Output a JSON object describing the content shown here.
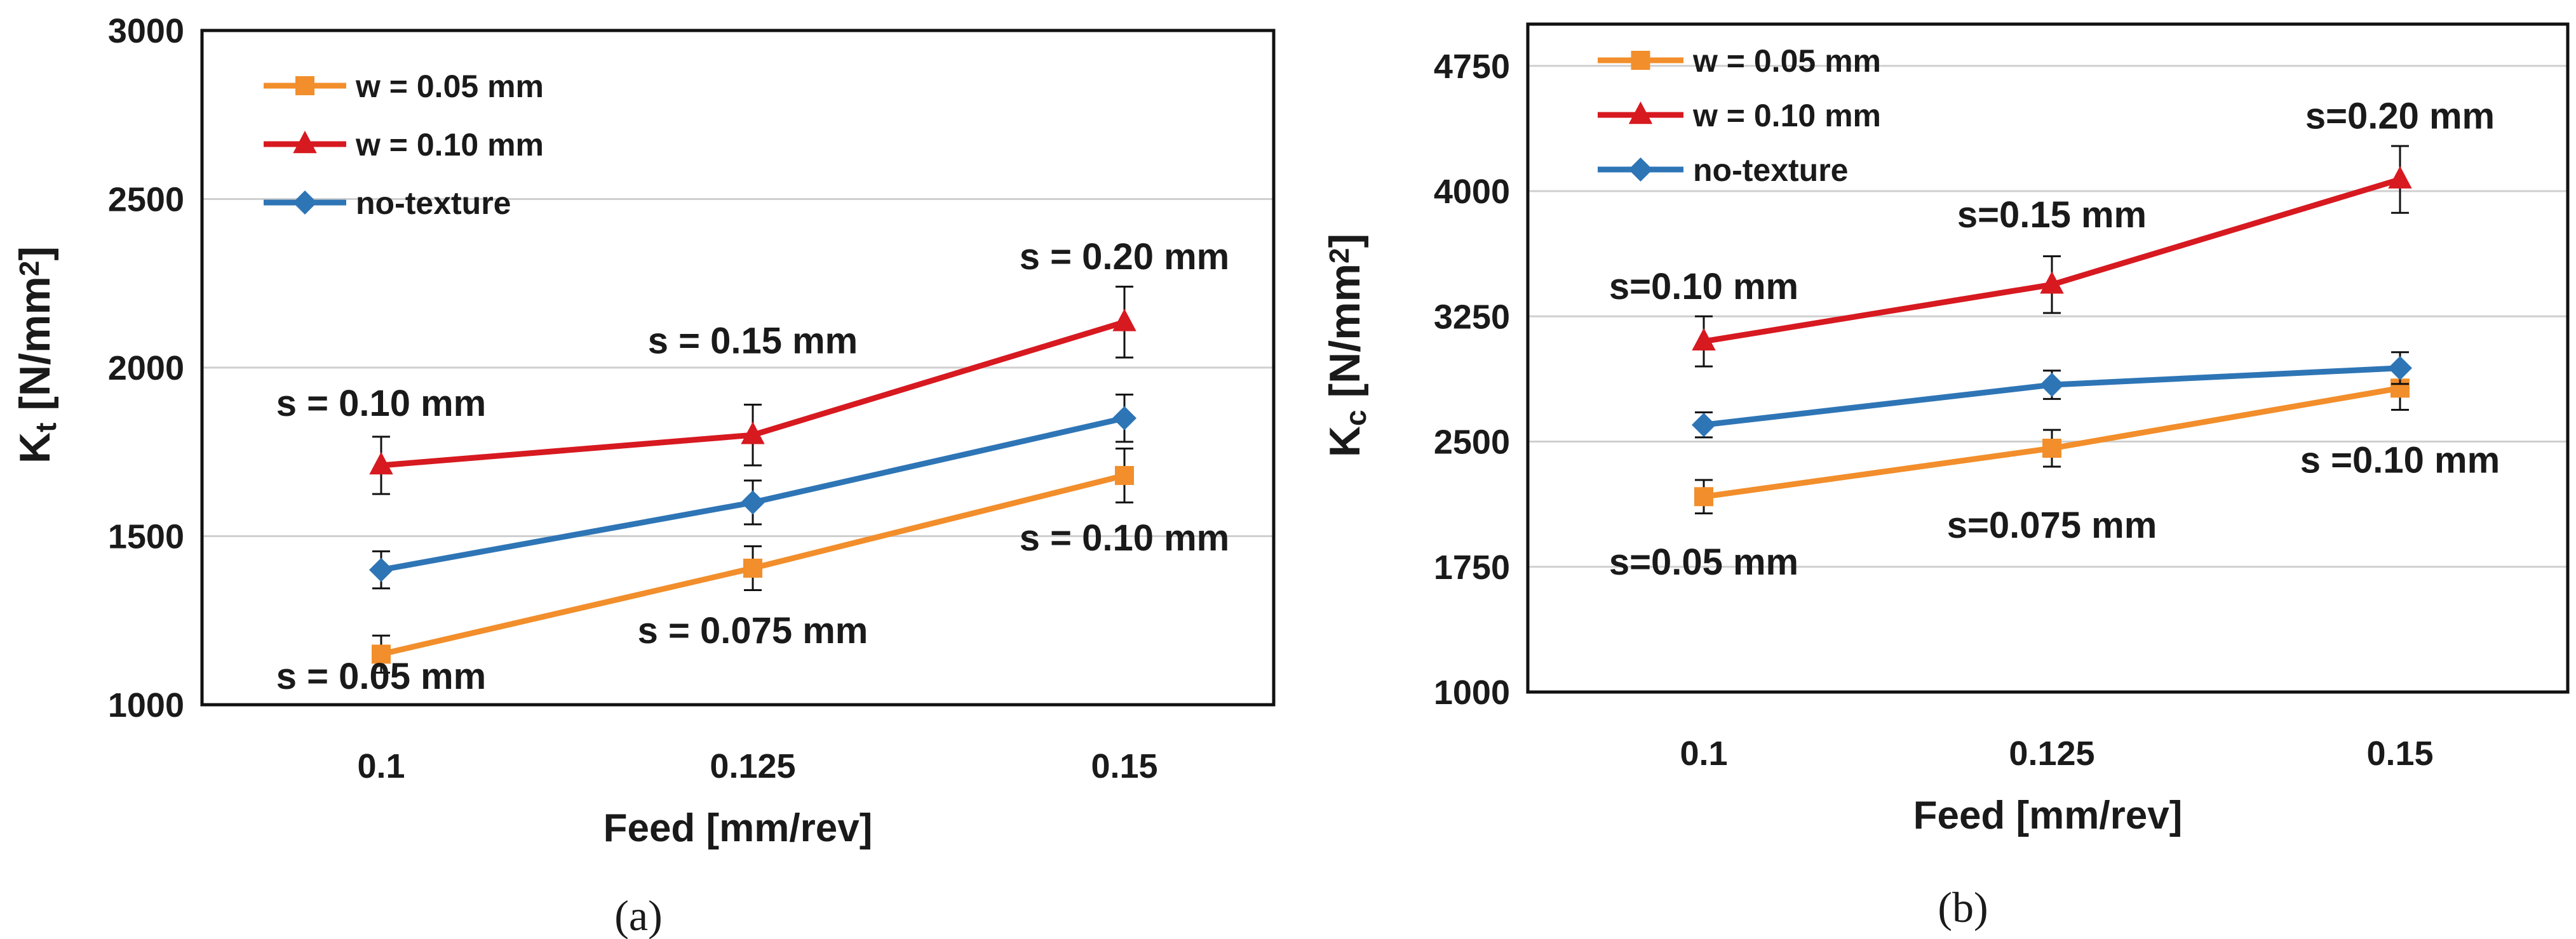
{
  "chart_data": [
    {
      "type": "line",
      "caption": "(a)",
      "xlabel": "Feed [mm/rev]",
      "ylabel": {
        "base": "K",
        "sub": "t",
        "unit_pre": " [N/mm",
        "sup": "2",
        "unit_post": "]"
      },
      "categories": [
        "0.1",
        "0.125",
        "0.15"
      ],
      "ylim": [
        1000,
        3000
      ],
      "yticks": [
        "1000",
        "1500",
        "2000",
        "2500",
        "3000"
      ],
      "grid": true,
      "legend": "top-left",
      "series": [
        {
          "name": "w = 0.05 mm",
          "color": "#F28E2B",
          "marker": "square",
          "values": [
            1150,
            1405,
            1680
          ],
          "err": [
            55,
            65,
            80
          ]
        },
        {
          "name": "w = 0.10 mm",
          "color": "#D71920",
          "marker": "triangle",
          "values": [
            1710,
            1800,
            2135
          ],
          "err": [
            85,
            90,
            105
          ]
        },
        {
          "name": "no-texture",
          "color": "#2E75B6",
          "marker": "diamond",
          "values": [
            1400,
            1600,
            1850
          ],
          "err": [
            55,
            65,
            70
          ]
        }
      ],
      "annotations": [
        {
          "text": "s = 0.10 mm",
          "x": 0.1,
          "y": 1895
        },
        {
          "text": "s = 0.15 mm",
          "x": 0.125,
          "y": 2080
        },
        {
          "text": "s = 0.20 mm",
          "x": 0.15,
          "y": 2330
        },
        {
          "text": "s = 0.10 mm",
          "x": 0.15,
          "y": 1495
        },
        {
          "text": "s = 0.075 mm",
          "x": 0.125,
          "y": 1220
        },
        {
          "text": "s = 0.05 mm",
          "x": 0.1,
          "y": 1085
        }
      ]
    },
    {
      "type": "line",
      "caption": "(b)",
      "xlabel": "Feed [mm/rev]",
      "ylabel": {
        "base": "K",
        "sub": "c",
        "unit_pre": " [N/mm",
        "sup": "2",
        "unit_post": "]"
      },
      "categories": [
        "0.1",
        "0.125",
        "0.15"
      ],
      "ylim": [
        1000,
        5000
      ],
      "yticks": [
        "1000",
        "1750",
        "2500",
        "3250",
        "4000",
        "4750"
      ],
      "grid": true,
      "legend": "top-left",
      "series": [
        {
          "name": "w = 0.05 mm",
          "color": "#F28E2B",
          "marker": "square",
          "values": [
            2170,
            2460,
            2820
          ],
          "err": [
            100,
            110,
            130
          ]
        },
        {
          "name": "w = 0.10 mm",
          "color": "#D71920",
          "marker": "triangle",
          "values": [
            3100,
            3440,
            4070
          ],
          "err": [
            150,
            170,
            200
          ]
        },
        {
          "name": "no-texture",
          "color": "#2E75B6",
          "marker": "diamond",
          "values": [
            2600,
            2840,
            2940
          ],
          "err": [
            75,
            85,
            95
          ]
        }
      ],
      "annotations": [
        {
          "text": "s=0.10 mm",
          "x": 0.1,
          "y": 3430
        },
        {
          "text": "s=0.15 mm",
          "x": 0.125,
          "y": 3860
        },
        {
          "text": "s=0.20 mm",
          "x": 0.15,
          "y": 4450
        },
        {
          "text": "s =0.10 mm",
          "x": 0.15,
          "y": 2390
        },
        {
          "text": "s=0.075 mm",
          "x": 0.125,
          "y": 2000
        },
        {
          "text": "s=0.05 mm",
          "x": 0.1,
          "y": 1780
        }
      ]
    }
  ]
}
